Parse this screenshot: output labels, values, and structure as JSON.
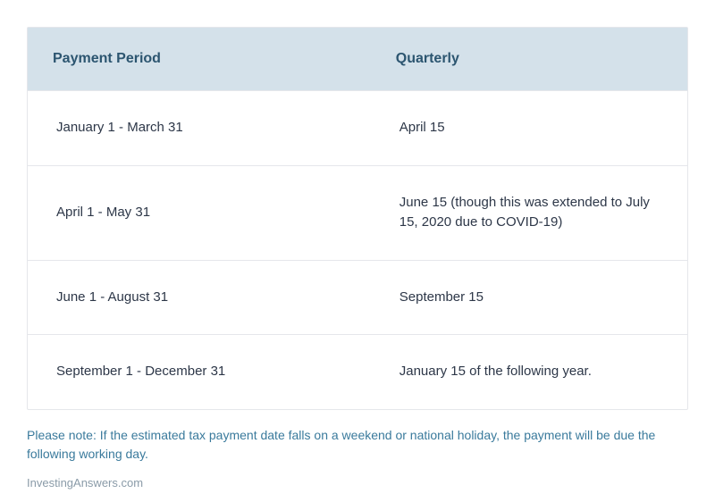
{
  "table": {
    "columns": [
      "Payment Period",
      "Quarterly"
    ],
    "rows": [
      [
        "January 1 - March 31",
        "April 15"
      ],
      [
        "April 1 - May 31",
        "June 15 (though this was extended to July 15, 2020 due to COVID-19)"
      ],
      [
        "June 1 - August 31",
        "September 15"
      ],
      [
        "September 1 - December 31",
        "January 15 of the following year."
      ]
    ],
    "header_bg": "#d4e1ea",
    "header_color": "#2c5570",
    "border_color": "#e5e7eb",
    "cell_color": "#2d3748",
    "header_fontsize": 16,
    "cell_fontsize": 15
  },
  "note": "Please note: If the estimated tax payment date falls on a weekend or national holiday, the payment will be due the following working day.",
  "note_color": "#3a7a9c",
  "attribution": "InvestingAnswers.com",
  "attribution_color": "#8a9ba8",
  "background_color": "#ffffff"
}
